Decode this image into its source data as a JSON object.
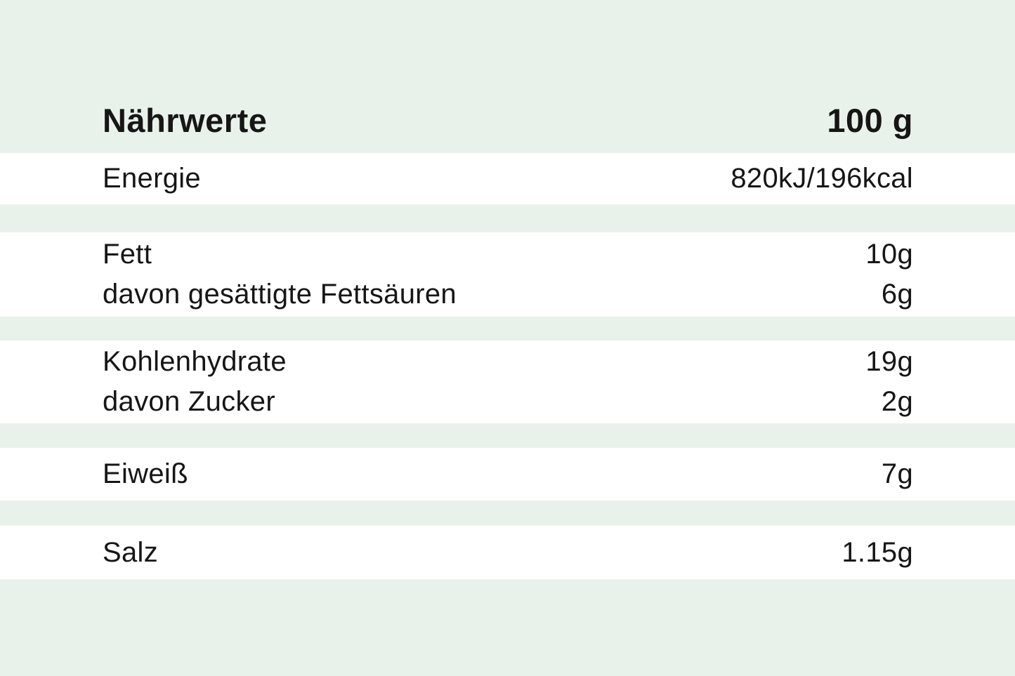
{
  "table": {
    "header": {
      "title": "Nährwerte",
      "column": "100 g"
    },
    "rows": [
      {
        "lines": [
          {
            "label": "Energie",
            "value": "820kJ/196kcal"
          }
        ]
      },
      {
        "lines": [
          {
            "label": "Fett",
            "value": "10g"
          },
          {
            "label": "davon gesättigte Fettsäuren",
            "value": "6g"
          }
        ]
      },
      {
        "lines": [
          {
            "label": "Kohlenhydrate",
            "value": "19g"
          },
          {
            "label": "davon Zucker",
            "value": "2g"
          }
        ]
      },
      {
        "lines": [
          {
            "label": "Eiweiß",
            "value": "7g"
          }
        ]
      },
      {
        "lines": [
          {
            "label": "Salz",
            "value": "1.15g"
          }
        ]
      }
    ],
    "colors": {
      "background_green": "#e9f2ea",
      "row_background": "#ffffff",
      "text": "#161616"
    }
  }
}
